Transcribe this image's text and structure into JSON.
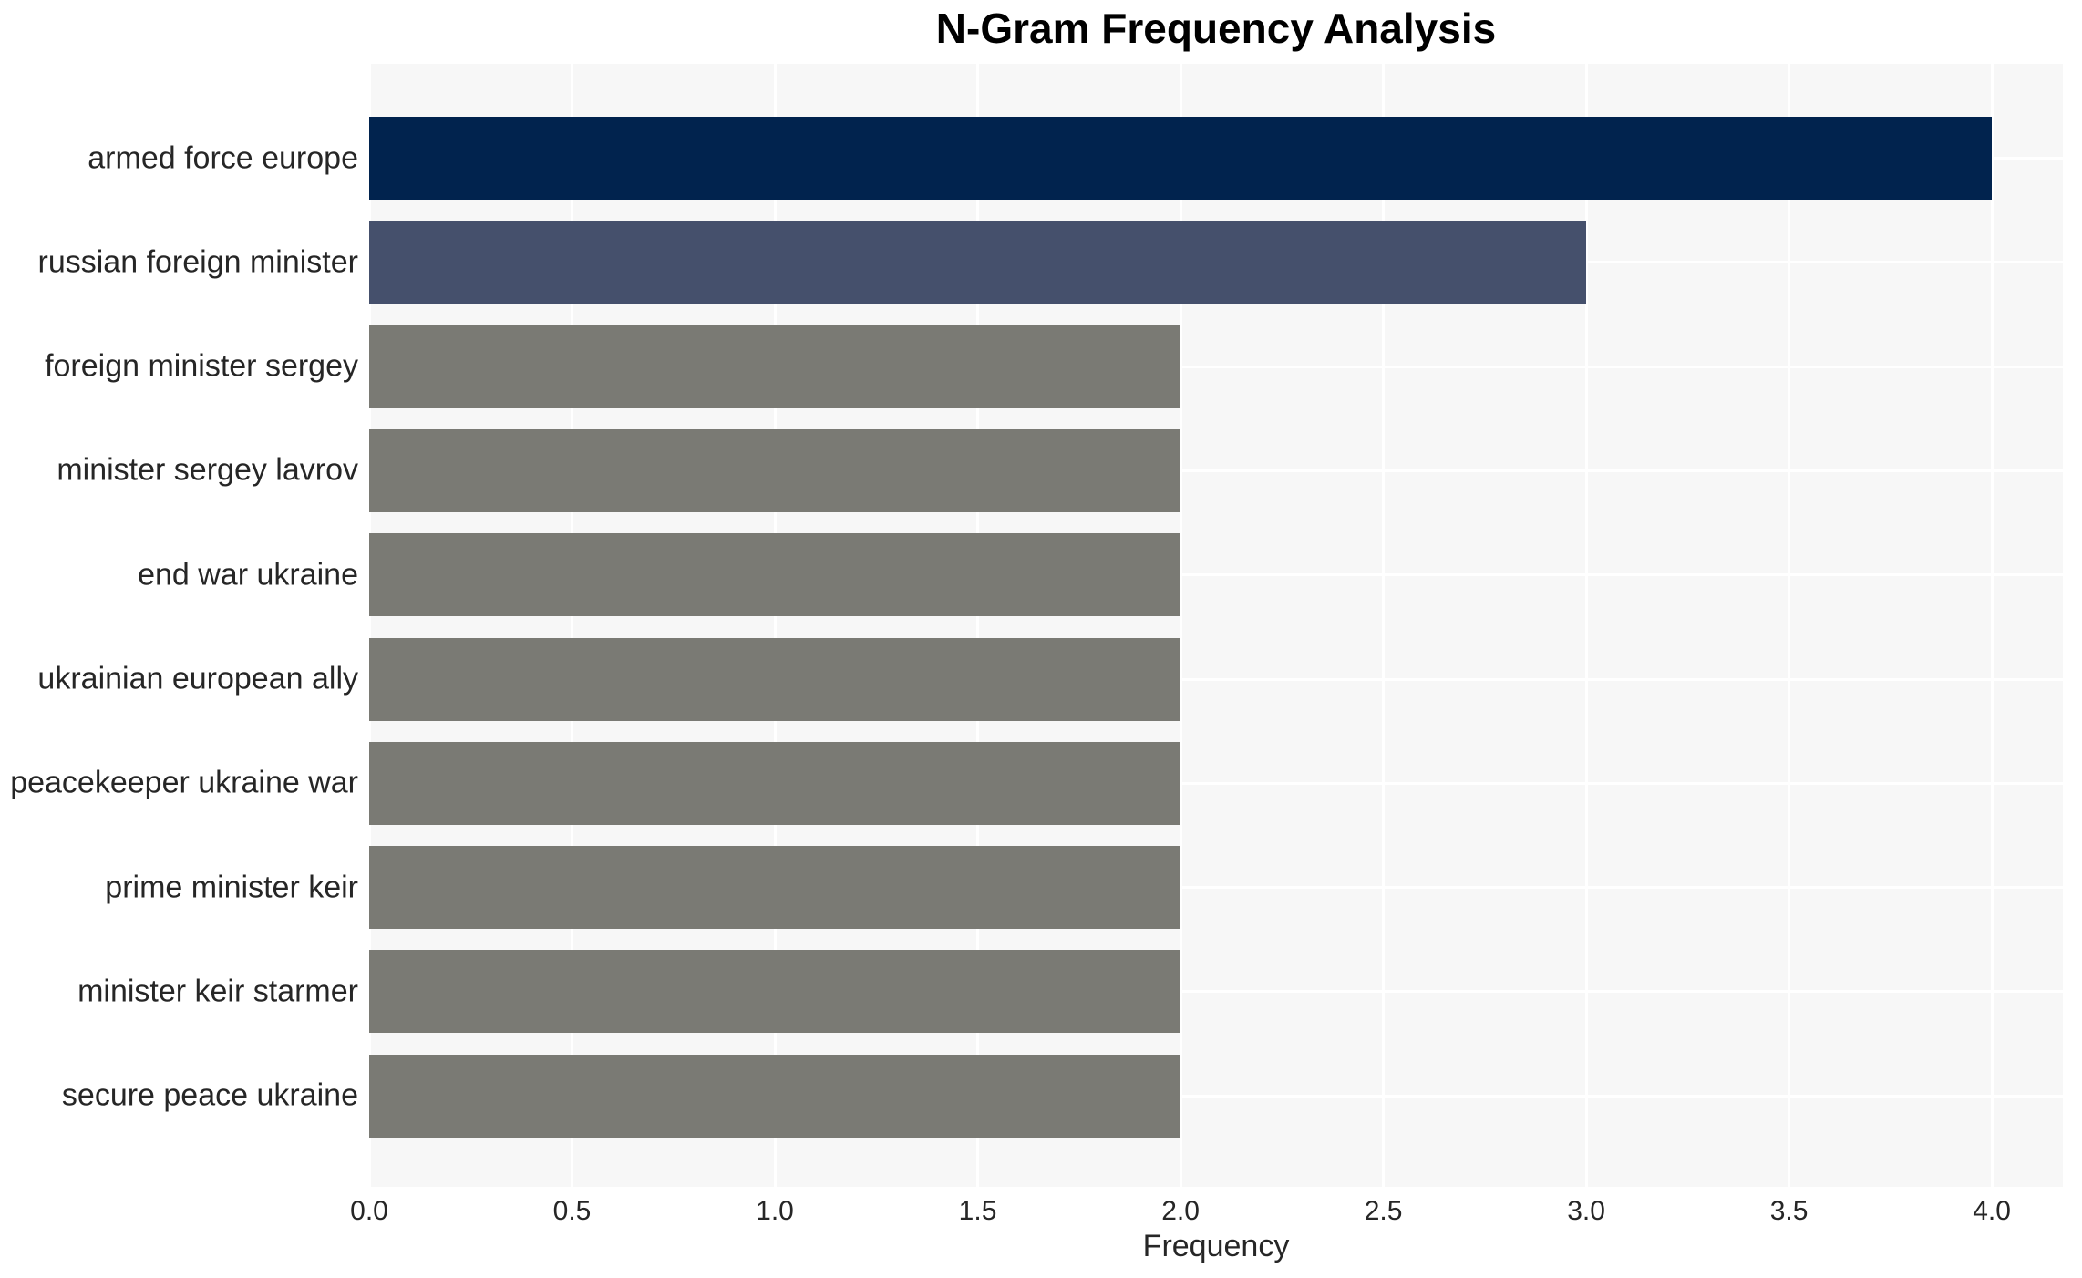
{
  "chart_data": {
    "type": "bar",
    "orientation": "horizontal",
    "title": "N-Gram Frequency Analysis",
    "xlabel": "Frequency",
    "ylabel": "",
    "categories": [
      "armed force europe",
      "russian foreign minister",
      "foreign minister sergey",
      "minister sergey lavrov",
      "end war ukraine",
      "ukrainian european ally",
      "peacekeeper ukraine war",
      "prime minister keir",
      "minister keir starmer",
      "secure peace ukraine"
    ],
    "values": [
      4,
      3,
      2,
      2,
      2,
      2,
      2,
      2,
      2,
      2
    ],
    "bar_colors": [
      "#01234e",
      "#45506c",
      "#7a7a74",
      "#7a7a74",
      "#7a7a74",
      "#7a7a74",
      "#7a7a74",
      "#7a7a74",
      "#7a7a74",
      "#7a7a74"
    ],
    "xlim": [
      0,
      4.175
    ],
    "xticks": [
      0,
      0.5,
      1,
      1.5,
      2,
      2.5,
      3,
      3.5,
      4
    ],
    "xtick_labels": [
      "0.0",
      "0.5",
      "1.0",
      "1.5",
      "2.0",
      "2.5",
      "3.0",
      "3.5",
      "4.0"
    ],
    "grid": true,
    "legend": false,
    "plot_background": "#f7f7f7",
    "grid_color": "#ffffff",
    "text_color": "#262626",
    "title_color": "#000000"
  }
}
